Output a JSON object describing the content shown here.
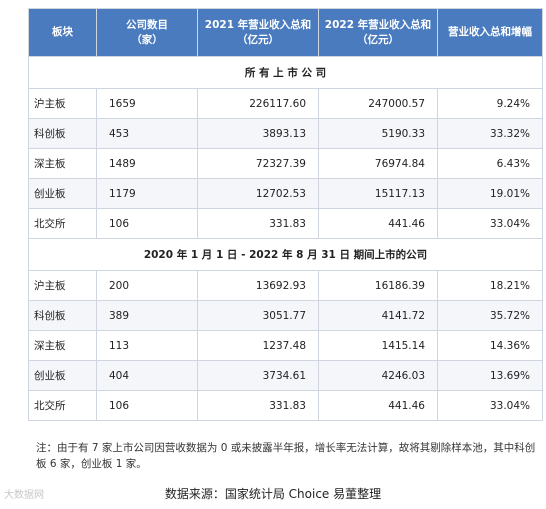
{
  "headers": [
    "板块",
    "公司数目\n（家）",
    "2021 年营业收入总和\n（亿元）",
    "2022 年营业收入总和\n（亿元）",
    "营业收入总和增幅"
  ],
  "section1_title": "所 有 上 市 公 司",
  "section1_rows": [
    {
      "name": "沪主板",
      "count": "1659",
      "rev2021": "226117.60",
      "rev2022": "247000.57",
      "growth": "9.24%"
    },
    {
      "name": "科创板",
      "count": "453",
      "rev2021": "3893.13",
      "rev2022": "5190.33",
      "growth": "33.32%"
    },
    {
      "name": "深主板",
      "count": "1489",
      "rev2021": "72327.39",
      "rev2022": "76974.84",
      "growth": "6.43%"
    },
    {
      "name": "创业板",
      "count": "1179",
      "rev2021": "12702.53",
      "rev2022": "15117.13",
      "growth": "19.01%"
    },
    {
      "name": "北交所",
      "count": "106",
      "rev2021": "331.83",
      "rev2022": "441.46",
      "growth": "33.04%"
    }
  ],
  "section2_title": "2020 年 1 月 1 日 - 2022 年 8 月 31 日 期间上市的公司",
  "section2_rows": [
    {
      "name": "沪主板",
      "count": "200",
      "rev2021": "13692.93",
      "rev2022": "16186.39",
      "growth": "18.21%"
    },
    {
      "name": "科创板",
      "count": "389",
      "rev2021": "3051.77",
      "rev2022": "4141.72",
      "growth": "35.72%"
    },
    {
      "name": "深主板",
      "count": "113",
      "rev2021": "1237.48",
      "rev2022": "1415.14",
      "growth": "14.36%"
    },
    {
      "name": "创业板",
      "count": "404",
      "rev2021": "3734.61",
      "rev2022": "4246.03",
      "growth": "13.69%"
    },
    {
      "name": "北交所",
      "count": "106",
      "rev2021": "331.83",
      "rev2022": "441.46",
      "growth": "33.04%"
    }
  ],
  "note": "注：由于有 7 家上市公司因营收数据为 0 或未披露半年报，增长率无法计算，故将其剔除样本池，其中科创板 6 家，创业板 1 家。",
  "source": "数据来源：国家统计局  Choice  易董整理",
  "watermark": "大数据网"
}
